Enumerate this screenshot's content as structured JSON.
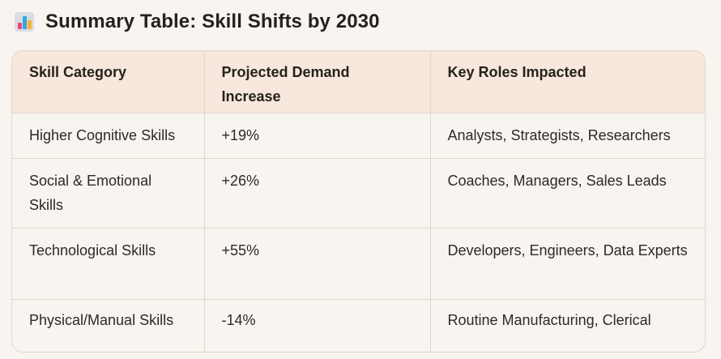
{
  "title": "Summary Table: Skill Shifts by 2030",
  "title_icon": "bar-chart-icon",
  "table": {
    "headers": [
      "Skill Category",
      "Projected Demand Increase",
      "Key Roles Impacted"
    ],
    "rows": [
      [
        "Higher Cognitive Skills",
        "+19%",
        "Analysts, Strategists, Researchers"
      ],
      [
        "Social & Emotional Skills",
        "+26%",
        "Coaches, Managers, Sales Leads"
      ],
      [
        "Technological Skills",
        "+55%",
        "Developers, Engineers, Data Experts"
      ],
      [
        "Physical/Manual Skills",
        "-14%",
        "Routine Manufacturing, Clerical"
      ]
    ]
  },
  "colors": {
    "background": "#f8f4f0",
    "header_background": "#f7e7dc",
    "border": "#e3d6cc",
    "text": "#26211d"
  }
}
